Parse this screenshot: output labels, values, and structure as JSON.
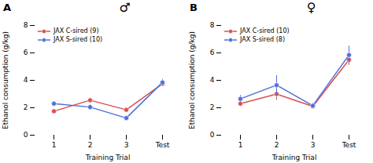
{
  "chart_data": [
    {
      "type": "line",
      "title": "A",
      "annotations": [
        "♂"
      ],
      "xlabel": "Training Trial",
      "ylabel": "Ethanol consumption (g/kg)",
      "categories": [
        "1",
        "2",
        "3",
        "Test"
      ],
      "series": [
        {
          "name": "JAX C-sired (9)",
          "color": "#d94f4f",
          "marker": "circle",
          "values": [
            1.75,
            2.55,
            1.85,
            3.75
          ],
          "errors": [
            0.12,
            0.15,
            0.15,
            0.18
          ]
        },
        {
          "name": "JAX S-sired (10)",
          "color": "#4f6fd9",
          "marker": "circle",
          "values": [
            2.3,
            2.05,
            1.25,
            3.85
          ],
          "errors": [
            0.15,
            0.18,
            0.18,
            0.22
          ]
        }
      ],
      "ylim": [
        0,
        8
      ],
      "yticks": [
        0,
        2,
        4,
        6,
        8
      ],
      "grid": false,
      "legend": "upper left"
    },
    {
      "type": "line",
      "title": "B",
      "annotations": [
        "♀"
      ],
      "xlabel": "Training Trial",
      "ylabel": "Ethanol consumption (g/kg)",
      "categories": [
        "1",
        "2",
        "3",
        "Test"
      ],
      "series": [
        {
          "name": "JAX C-sired (10)",
          "color": "#d94f4f",
          "marker": "circle",
          "values": [
            2.3,
            3.0,
            2.1,
            5.5
          ],
          "errors": [
            0.22,
            0.45,
            0.15,
            0.4
          ]
        },
        {
          "name": "JAX S-sired (8)",
          "color": "#4f6fd9",
          "marker": "circle",
          "values": [
            2.65,
            3.65,
            2.15,
            5.85
          ],
          "errors": [
            0.25,
            0.7,
            0.18,
            0.65
          ]
        }
      ],
      "ylim": [
        0,
        8
      ],
      "yticks": [
        0,
        2,
        4,
        6,
        8
      ],
      "grid": false,
      "legend": "upper left"
    }
  ]
}
